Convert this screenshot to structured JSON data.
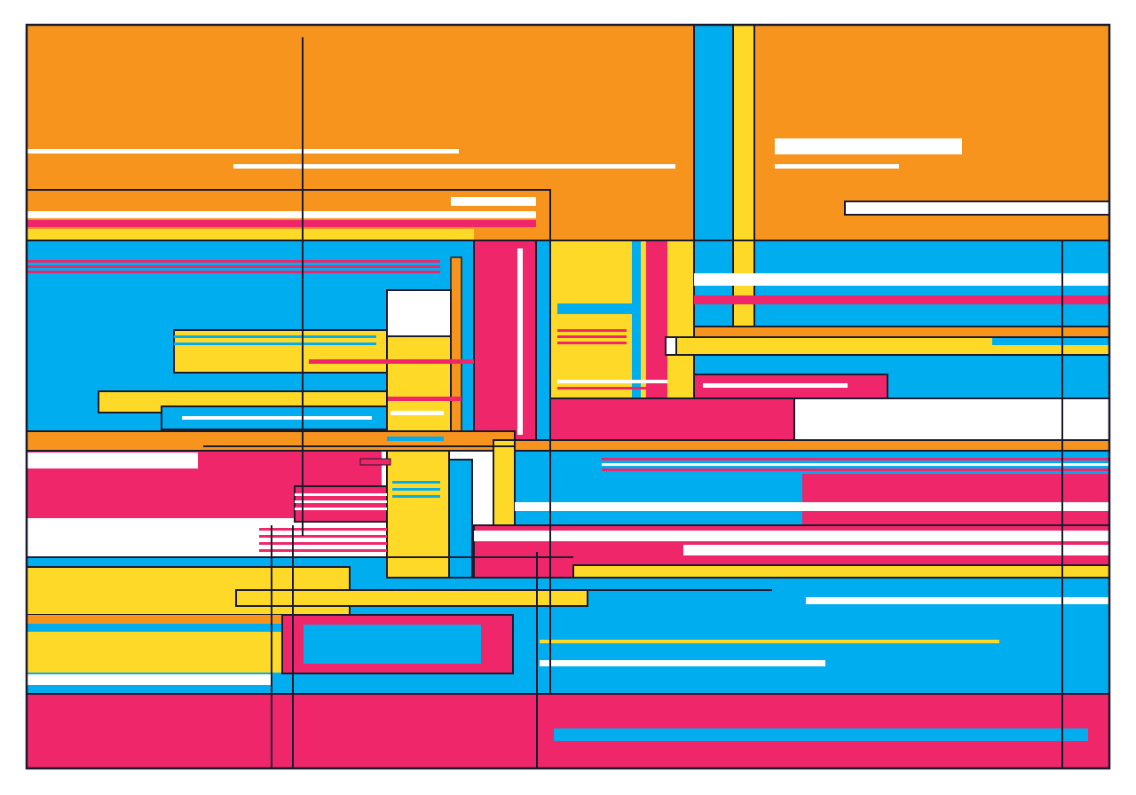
{
  "artwork": {
    "title": "",
    "palette": {
      "orange": "#F7941D",
      "blue": "#00AEEF",
      "pink": "#F0266B",
      "yellow": "#FFD928",
      "white": "#FFFFFF",
      "line": "#1A1A2E"
    }
  }
}
